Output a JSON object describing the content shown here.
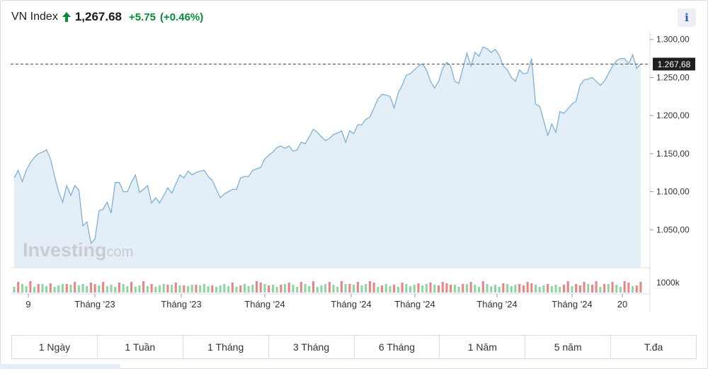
{
  "header": {
    "title": "VN Index",
    "price": "1,267.68",
    "change": "+5.75",
    "change_pct": "(+0.46%)",
    "up_color": "#0a8a3c",
    "arrow_icon": "arrow-up-icon",
    "info_label": "i"
  },
  "watermark": {
    "brand": "Investing",
    "suffix": ".com"
  },
  "chart_data": {
    "type": "area",
    "title": "",
    "xlabel": "",
    "ylabel": "",
    "ylim": [
      1000,
      1310
    ],
    "yticks": [
      1050,
      1100,
      1150,
      1200,
      1250,
      1300
    ],
    "ytick_labels": [
      "1.050,00",
      "1.100,00",
      "1.150,00",
      "1.200,00",
      "1.250,00",
      "1.300,00"
    ],
    "current_value": 1267.68,
    "current_label": "1.267,68",
    "xtick_labels": [
      "9",
      "Tháng '23",
      "Tháng '23",
      "Tháng '24",
      "Tháng '24",
      "Tháng '24",
      "Tháng '24",
      "Tháng '24",
      "20"
    ],
    "volume_label": "1000k",
    "line_color": "#7fb0d8",
    "fill_color": "#e4eef7",
    "volume_up_color": "#8fd4a6",
    "volume_down_color": "#e88585",
    "series": [
      {
        "values": [
          1118,
          1128,
          1113,
          1128,
          1138,
          1145,
          1150,
          1152,
          1155,
          1143,
          1120,
          1100,
          1086,
          1108,
          1095,
          1108,
          1102,
          1055,
          1060,
          1032,
          1038,
          1075,
          1077,
          1086,
          1072,
          1112,
          1112,
          1100,
          1100,
          1112,
          1122,
          1099,
          1103,
          1108,
          1085,
          1092,
          1085,
          1095,
          1105,
          1098,
          1110,
          1122,
          1118,
          1127,
          1122,
          1125,
          1127,
          1128,
          1120,
          1115,
          1103,
          1092,
          1097,
          1100,
          1103,
          1103,
          1118,
          1120,
          1120,
          1128,
          1130,
          1132,
          1143,
          1148,
          1152,
          1158,
          1160,
          1157,
          1160,
          1153,
          1155,
          1165,
          1163,
          1172,
          1182,
          1178,
          1172,
          1167,
          1170,
          1175,
          1177,
          1180,
          1165,
          1180,
          1176,
          1188,
          1188,
          1195,
          1198,
          1210,
          1222,
          1228,
          1227,
          1225,
          1210,
          1230,
          1240,
          1253,
          1255,
          1260,
          1265,
          1268,
          1260,
          1245,
          1236,
          1245,
          1262,
          1270,
          1265,
          1245,
          1242,
          1262,
          1282,
          1265,
          1283,
          1278,
          1290,
          1288,
          1283,
          1287,
          1279,
          1265,
          1260,
          1250,
          1245,
          1260,
          1255,
          1256,
          1275,
          1215,
          1212,
          1193,
          1174,
          1189,
          1178,
          1205,
          1203,
          1209,
          1215,
          1219,
          1240,
          1247,
          1248,
          1250,
          1245,
          1240,
          1245,
          1255,
          1265,
          1272,
          1275,
          1275,
          1268,
          1280,
          1262,
          1267.68
        ]
      }
    ],
    "volume_direction": [
      1,
      0,
      1,
      1,
      0,
      1,
      0,
      1,
      1,
      0,
      1,
      1,
      1,
      0,
      1,
      0,
      1,
      1,
      1,
      0,
      0,
      1,
      0,
      1,
      1,
      1,
      0,
      1,
      1,
      0,
      1,
      1,
      0,
      1,
      0,
      1,
      1,
      1,
      0,
      1,
      0,
      1,
      0,
      1,
      1,
      0,
      1,
      1,
      1,
      0,
      1,
      1,
      1,
      1,
      0,
      1,
      0,
      1,
      1,
      1,
      0,
      0,
      1,
      0,
      1,
      1,
      0,
      1,
      0,
      1,
      1,
      0,
      1,
      1,
      0,
      1,
      1,
      1,
      0,
      1,
      1,
      0,
      1,
      0,
      1,
      0,
      1,
      1,
      0,
      0,
      1,
      0,
      1,
      1,
      0,
      1,
      0,
      1,
      1,
      1,
      0,
      1,
      1,
      0,
      1,
      0,
      0,
      0,
      0,
      1,
      1,
      0,
      1,
      0,
      1,
      1,
      0,
      1,
      1,
      1,
      1,
      0,
      1,
      1,
      1,
      0,
      0,
      0,
      0,
      1,
      1,
      1,
      0,
      1,
      1,
      1,
      0,
      0,
      1,
      0,
      0,
      0,
      1,
      0,
      0,
      1,
      0,
      1,
      0,
      1,
      1,
      0,
      0,
      1,
      0,
      0
    ]
  },
  "ranges": [
    "1 Ngày",
    "1 Tuần",
    "1 Tháng",
    "3 Tháng",
    "6 Tháng",
    "1 Năm",
    "5 năm",
    "T.đa"
  ]
}
